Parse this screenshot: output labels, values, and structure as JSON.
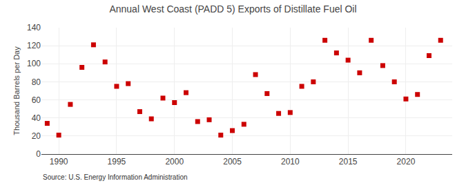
{
  "chart_data": {
    "type": "scatter",
    "title": "Annual West Coast (PADD 5) Exports of Distillate Fuel Oil",
    "ylabel": "Thousand Barrels per Day",
    "source": "Source: U.S. Energy Information Administration",
    "x": [
      1989,
      1990,
      1991,
      1992,
      1993,
      1994,
      1995,
      1996,
      1997,
      1998,
      1999,
      2000,
      2001,
      2002,
      2003,
      2004,
      2005,
      2006,
      2007,
      2008,
      2009,
      2010,
      2011,
      2012,
      2013,
      2014,
      2015,
      2016,
      2017,
      2018,
      2019,
      2020,
      2021,
      2022,
      2023
    ],
    "values": [
      34,
      21,
      55,
      96,
      121,
      102,
      75,
      78,
      47,
      39,
      62,
      57,
      68,
      36,
      38,
      21,
      26,
      33,
      88,
      67,
      45,
      46,
      75,
      80,
      126,
      112,
      104,
      90,
      126,
      98,
      80,
      61,
      66,
      109,
      126
    ],
    "color": "#cc0000",
    "marker": "square",
    "xlim": [
      1988.5,
      2024
    ],
    "xticks": [
      1990,
      1995,
      2000,
      2005,
      2010,
      2015,
      2020
    ],
    "ylim": [
      0,
      140
    ],
    "yticks": [
      0,
      20,
      40,
      60,
      80,
      100,
      120,
      140
    ],
    "grid": true
  }
}
